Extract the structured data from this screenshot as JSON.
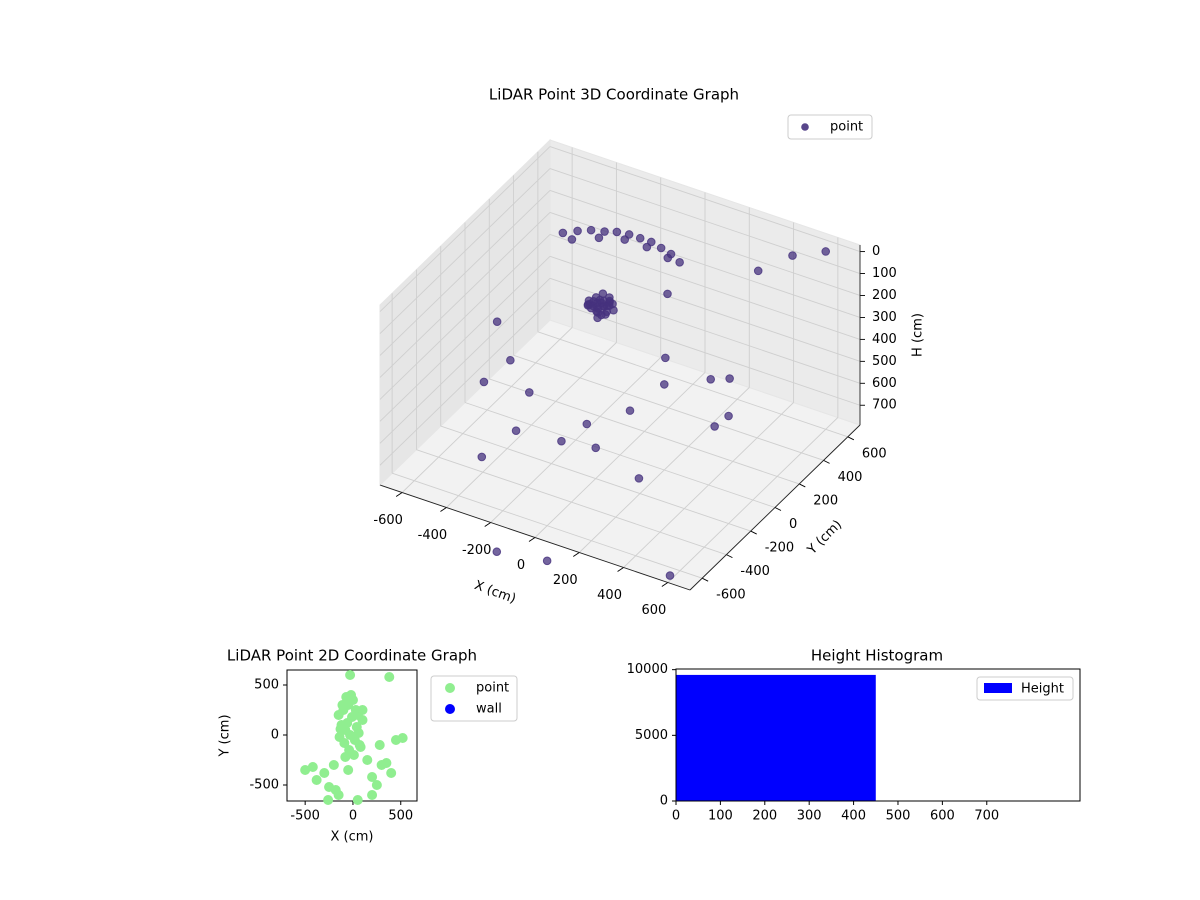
{
  "chart_data": [
    {
      "type": "scatter3d",
      "title": "LiDAR Point 3D Coordinate Graph",
      "xlabel": "X (cm)",
      "ylabel": "Y (cm)",
      "zlabel": "H (cm)",
      "xlim": [
        -700,
        700
      ],
      "ylim": [
        -700,
        700
      ],
      "zlim": [
        790,
        -30
      ],
      "xticks": [
        -600,
        -400,
        -200,
        0,
        200,
        400,
        600
      ],
      "yticks": [
        -600,
        -400,
        -200,
        0,
        200,
        400,
        600
      ],
      "zticks": [
        0,
        100,
        200,
        300,
        400,
        500,
        600,
        700
      ],
      "grid": true,
      "legend": "upper right",
      "series": [
        {
          "name": "point",
          "color": "#46327e",
          "x": [
            -250,
            -230,
            -210,
            -190,
            -170,
            -220,
            -200,
            -180,
            -240,
            -160,
            -260,
            -210,
            -195,
            -225,
            -185,
            -205,
            -215,
            -175,
            -235,
            -245,
            -150,
            -270,
            -200,
            -190,
            -230,
            -210,
            -180,
            -220,
            -200,
            -240,
            -450,
            -400,
            -350,
            -300,
            -250,
            -200,
            -150,
            -100,
            -50,
            0,
            50,
            -420,
            -320,
            -220,
            -120,
            -20,
            -500,
            -450,
            -550,
            -300,
            -250,
            -100,
            0,
            100,
            200,
            150,
            50,
            300,
            400,
            250,
            -150,
            -350,
            350,
            450,
            600,
            500,
            -200,
            0,
            600,
            550
          ],
          "y": [
            200,
            230,
            250,
            210,
            190,
            260,
            180,
            240,
            220,
            230,
            210,
            200,
            270,
            190,
            250,
            220,
            240,
            210,
            180,
            250,
            220,
            230,
            200,
            260,
            240,
            190,
            220,
            210,
            230,
            200,
            350,
            380,
            400,
            420,
            430,
            440,
            440,
            440,
            430,
            420,
            400,
            370,
            410,
            440,
            440,
            430,
            -100,
            -300,
            100,
            -200,
            -400,
            -300,
            -200,
            -100,
            0,
            100,
            300,
            200,
            50,
            -300,
            0,
            -500,
            500,
            600,
            -200,
            -500,
            -650,
            -600,
            600,
            -100
          ],
          "z": [
            280,
            300,
            320,
            290,
            310,
            270,
            330,
            300,
            290,
            280,
            310,
            320,
            300,
            290,
            270,
            340,
            300,
            310,
            280,
            290,
            300,
            320,
            260,
            300,
            330,
            310,
            290,
            300,
            280,
            310,
            120,
            110,
            100,
            100,
            90,
            90,
            90,
            90,
            95,
            100,
            110,
            150,
            130,
            120,
            120,
            130,
            300,
            450,
            600,
            500,
            550,
            600,
            650,
            500,
            400,
            350,
            200,
            450,
            550,
            650,
            700,
            650,
            100,
            50,
            300,
            900,
            950,
            950,
            -20,
            200
          ]
        }
      ]
    },
    {
      "type": "scatter",
      "title": "LiDAR Point 2D Coordinate Graph",
      "xlabel": "X (cm)",
      "ylabel": "Y (cm)",
      "xlim": [
        -690,
        670
      ],
      "ylim": [
        -660,
        650
      ],
      "xticks": [
        -500,
        0,
        500
      ],
      "yticks": [
        -500,
        0,
        500
      ],
      "legend": "outside right",
      "series": [
        {
          "name": "point",
          "color": "#90ee90",
          "x": [
            -150,
            -100,
            -50,
            0,
            50,
            100,
            -120,
            -80,
            -30,
            20,
            70,
            -60,
            -10,
            40,
            -140,
            -90,
            -40,
            10,
            60,
            -110,
            -70,
            -20,
            30,
            80,
            -130,
            -500,
            -420,
            -380,
            -300,
            -250,
            -200,
            -150,
            -50,
            50,
            150,
            200,
            250,
            300,
            350,
            400,
            450,
            520,
            -30,
            380,
            200,
            100,
            -180,
            -80,
            280,
            -260
          ],
          "y": [
            200,
            250,
            300,
            350,
            200,
            150,
            100,
            50,
            0,
            -50,
            -100,
            120,
            180,
            80,
            -20,
            -80,
            -150,
            -200,
            20,
            300,
            380,
            400,
            250,
            -120,
            60,
            -350,
            -320,
            -450,
            -380,
            -520,
            -300,
            -600,
            -350,
            -650,
            -250,
            -420,
            -500,
            -300,
            -280,
            -380,
            -50,
            -30,
            600,
            580,
            -600,
            250,
            -550,
            -220,
            -100,
            -650
          ]
        },
        {
          "name": "wall",
          "color": "#0000ff",
          "x": [],
          "y": []
        }
      ]
    },
    {
      "type": "histogram",
      "title": "Height Histogram",
      "xlim": [
        0,
        910
      ],
      "ylim": [
        0,
        10050
      ],
      "xticks": [
        0,
        100,
        200,
        300,
        400,
        500,
        600,
        700
      ],
      "yticks": [
        0,
        5000,
        10000
      ],
      "legend": "upper right",
      "bins": [
        0,
        450,
        900
      ],
      "series": [
        {
          "name": "Height",
          "color": "#0000ff",
          "values": [
            9600,
            5
          ]
        }
      ]
    }
  ]
}
